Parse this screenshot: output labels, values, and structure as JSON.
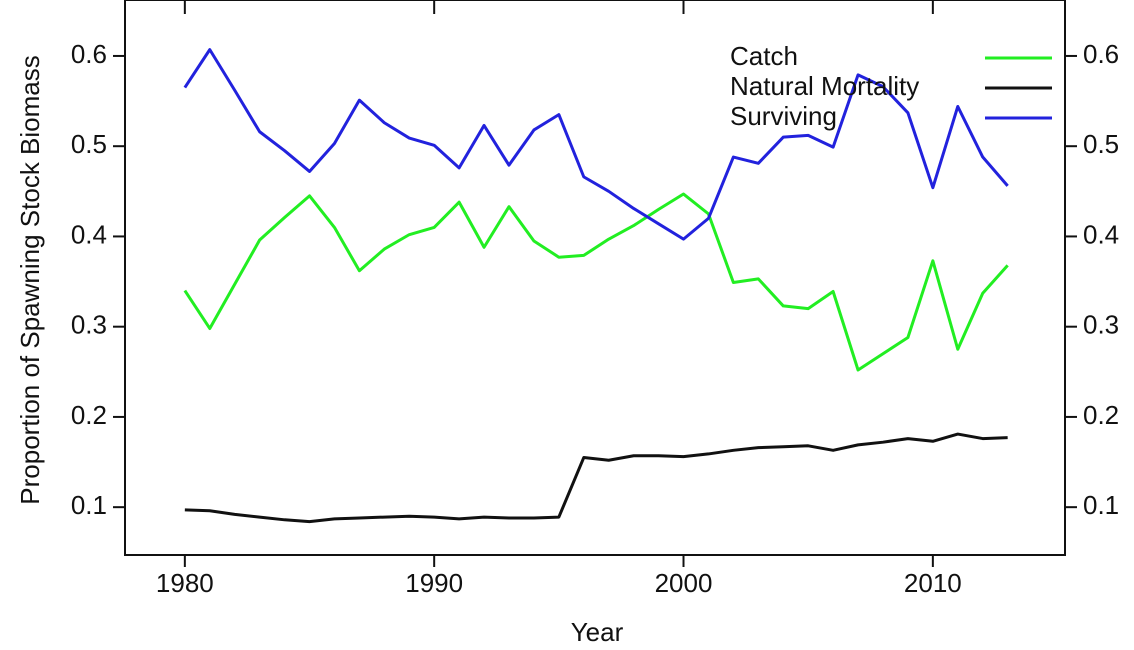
{
  "chart_data": {
    "type": "line",
    "x_label": "Year",
    "y_label": "Proportion of Spawning Stock Biomass",
    "x": [
      1980,
      1981,
      1982,
      1983,
      1984,
      1985,
      1986,
      1987,
      1988,
      1989,
      1990,
      1991,
      1992,
      1993,
      1994,
      1995,
      1996,
      1997,
      1998,
      1999,
      2000,
      2001,
      2002,
      2003,
      2004,
      2005,
      2006,
      2007,
      2008,
      2009,
      2010,
      2011,
      2012,
      2013
    ],
    "series": [
      {
        "name": "Catch",
        "color": "#22ee22",
        "values": [
          0.34,
          0.298,
          0.347,
          0.396,
          0.421,
          0.445,
          0.41,
          0.362,
          0.386,
          0.402,
          0.41,
          0.438,
          0.388,
          0.433,
          0.395,
          0.377,
          0.379,
          0.397,
          0.412,
          0.43,
          0.447,
          0.425,
          0.349,
          0.353,
          0.323,
          0.32,
          0.339,
          0.252,
          0.27,
          0.288,
          0.373,
          0.275,
          0.337,
          0.368
        ]
      },
      {
        "name": "Natural Mortality",
        "color": "#111111",
        "values": [
          0.097,
          0.096,
          0.092,
          0.089,
          0.086,
          0.084,
          0.087,
          0.088,
          0.089,
          0.09,
          0.089,
          0.087,
          0.089,
          0.088,
          0.088,
          0.089,
          0.155,
          0.152,
          0.157,
          0.157,
          0.156,
          0.159,
          0.163,
          0.166,
          0.167,
          0.168,
          0.163,
          0.169,
          0.172,
          0.176,
          0.173,
          0.181,
          0.176,
          0.177
        ]
      },
      {
        "name": "Surviving",
        "color": "#2222dd",
        "values": [
          0.565,
          0.607,
          0.562,
          0.516,
          0.495,
          0.472,
          0.503,
          0.551,
          0.526,
          0.509,
          0.501,
          0.476,
          0.523,
          0.479,
          0.518,
          0.535,
          0.466,
          0.45,
          0.431,
          0.414,
          0.397,
          0.42,
          0.488,
          0.481,
          0.51,
          0.512,
          0.499,
          0.579,
          0.566,
          0.537,
          0.454,
          0.544,
          0.488,
          0.456
        ]
      }
    ],
    "xlim": [
      1977.6,
      2015.3
    ],
    "xticks": [
      1980,
      1990,
      2000,
      2010
    ],
    "ylim": [
      0.047,
      0.662
    ],
    "yticks": [
      0.1,
      0.2,
      0.3,
      0.4,
      0.5,
      0.6
    ],
    "legend": "top-right"
  }
}
